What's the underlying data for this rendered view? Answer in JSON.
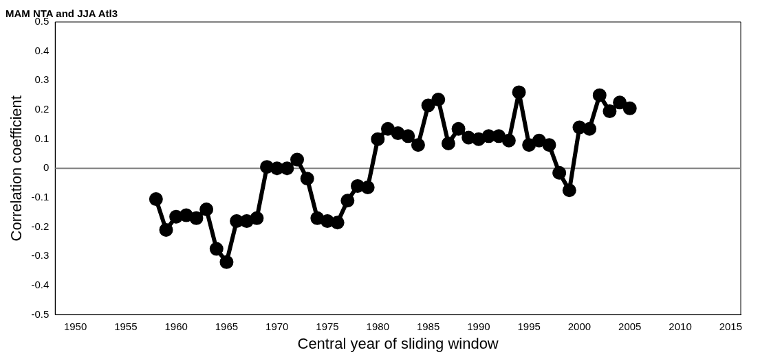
{
  "chart_data": {
    "type": "line",
    "title": "MAM NTA and JJA Atl3",
    "xlabel": "Central year of sliding window",
    "ylabel": "Correlation coefficient",
    "x": [
      1958,
      1959,
      1960,
      1961,
      1962,
      1963,
      1964,
      1965,
      1966,
      1967,
      1968,
      1969,
      1970,
      1971,
      1972,
      1973,
      1974,
      1975,
      1976,
      1977,
      1978,
      1979,
      1980,
      1981,
      1982,
      1983,
      1984,
      1985,
      1986,
      1987,
      1988,
      1989,
      1990,
      1991,
      1992,
      1993,
      1994,
      1995,
      1996,
      1997,
      1998,
      1999,
      2000,
      2001,
      2002,
      2003,
      2004,
      2005
    ],
    "series": [
      {
        "color": "#000000",
        "values": [
          -0.105,
          -0.21,
          -0.165,
          -0.16,
          -0.17,
          -0.14,
          -0.275,
          -0.32,
          -0.18,
          -0.18,
          -0.17,
          0.005,
          0.0,
          0.0,
          0.03,
          -0.035,
          -0.17,
          -0.18,
          -0.185,
          -0.11,
          -0.06,
          -0.065,
          0.1,
          0.135,
          0.12,
          0.11,
          0.08,
          0.215,
          0.235,
          0.085,
          0.135,
          0.105,
          0.1,
          0.11,
          0.11,
          0.095,
          0.26,
          0.08,
          0.095,
          0.08,
          -0.015,
          -0.075,
          0.14,
          0.135,
          0.25,
          0.195,
          0.225,
          0.205
        ]
      }
    ],
    "xlim": [
      1948,
      2016
    ],
    "xticks": [
      1950,
      1955,
      1960,
      1965,
      1970,
      1975,
      1980,
      1985,
      1990,
      1995,
      2000,
      2005,
      2010,
      2015
    ],
    "ylim": [
      -0.5,
      0.5
    ],
    "yticks": [
      -0.5,
      -0.4,
      -0.3,
      -0.2,
      -0.1,
      0,
      0.1,
      0.2,
      0.3,
      0.4,
      0.5
    ],
    "ref_lines": [
      {
        "axis": "y",
        "value": 0,
        "color": "#808080"
      }
    ],
    "grid": false,
    "legend": false,
    "marker": "circle",
    "line_style": "solid"
  }
}
